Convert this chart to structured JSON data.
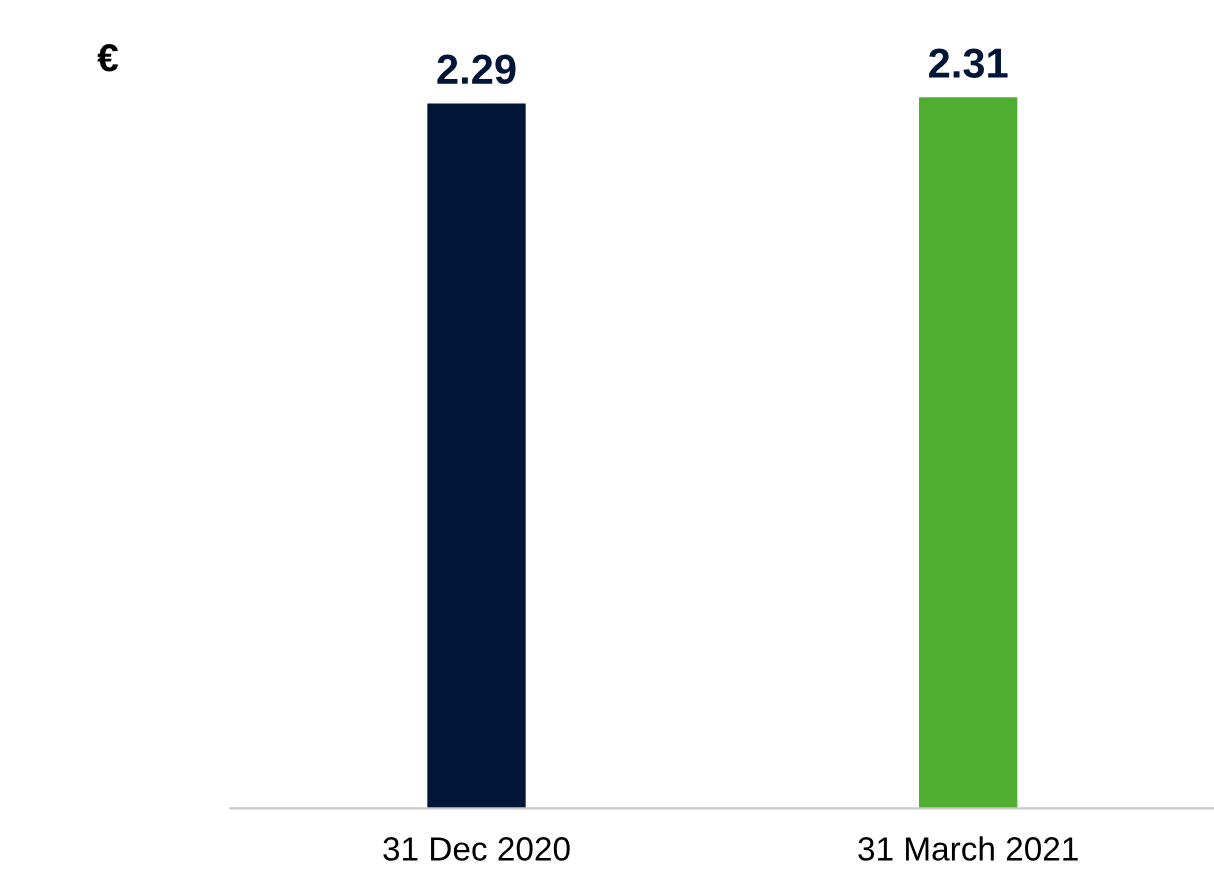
{
  "chart_data": {
    "type": "bar",
    "annotations": [
      "€"
    ],
    "categories": [
      "31 Dec 2020",
      "31 March 2021"
    ],
    "values": [
      2.29,
      2.31
    ],
    "colors": [
      "#001537",
      "#4fae32"
    ],
    "data_labels": true,
    "grid": false,
    "legend": false
  }
}
